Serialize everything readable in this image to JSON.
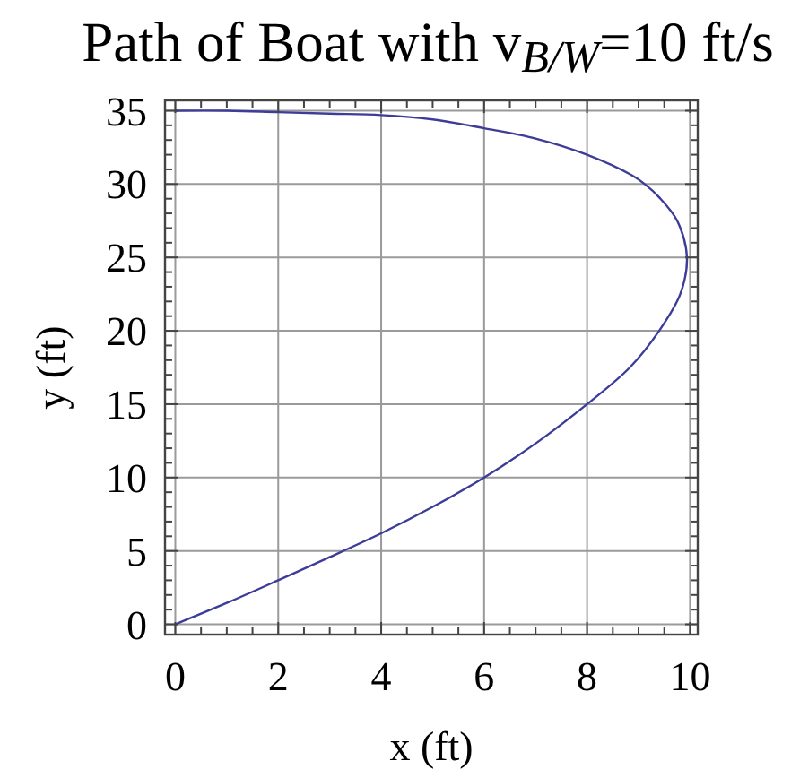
{
  "chart_data": {
    "type": "line",
    "title": "Path of Boat with v$_{B/W}$=10 ft/s",
    "xlabel": "x (ft)",
    "ylabel": "y (ft)",
    "xlim": [
      -0.2,
      10.15
    ],
    "ylim": [
      -0.7,
      35.7
    ],
    "xticks": [
      0,
      {
        "value": 0.5,
        "label": null
      },
      {
        "value": 1,
        "label": null
      },
      {
        "value": 1.5,
        "label": null
      },
      2,
      {
        "value": 2.5,
        "label": null
      },
      {
        "value": 3,
        "label": null
      },
      {
        "value": 3.5,
        "label": null
      },
      4,
      {
        "value": 4.5,
        "label": null
      },
      {
        "value": 5,
        "label": null
      },
      {
        "value": 5.5,
        "label": null
      },
      6,
      {
        "value": 6.5,
        "label": null
      },
      {
        "value": 7,
        "label": null
      },
      {
        "value": 7.5,
        "label": null
      },
      8,
      {
        "value": 8.5,
        "label": null
      },
      {
        "value": 9,
        "label": null
      },
      {
        "value": 9.5,
        "label": null
      },
      10
    ],
    "yticks": [
      0,
      {
        "value": 1,
        "label": null
      },
      {
        "value": 2,
        "label": null
      },
      {
        "value": 3,
        "label": null
      },
      {
        "value": 4,
        "label": null
      },
      5,
      {
        "value": 6,
        "label": null
      },
      {
        "value": 7,
        "label": null
      },
      {
        "value": 8,
        "label": null
      },
      {
        "value": 9,
        "label": null
      },
      10,
      {
        "value": 11,
        "label": null
      },
      {
        "value": 12,
        "label": null
      },
      {
        "value": 13,
        "label": null
      },
      {
        "value": 14,
        "label": null
      },
      15,
      {
        "value": 16,
        "label": null
      },
      {
        "value": 17,
        "label": null
      },
      {
        "value": 18,
        "label": null
      },
      {
        "value": 19,
        "label": null
      },
      20,
      {
        "value": 21,
        "label": null
      },
      {
        "value": 22,
        "label": null
      },
      {
        "value": 23,
        "label": null
      },
      {
        "value": 24,
        "label": null
      },
      25,
      {
        "value": 26,
        "label": null
      },
      {
        "value": 27,
        "label": null
      },
      {
        "value": 28,
        "label": null
      },
      {
        "value": 29,
        "label": null
      },
      30,
      {
        "value": 31,
        "label": null
      },
      {
        "value": 32,
        "label": null
      },
      {
        "value": 33,
        "label": null
      },
      {
        "value": 34,
        "label": null
      },
      35
    ],
    "grid": true,
    "series": [
      {
        "color": "#3d3d99",
        "x": [
          0,
          1.03,
          2.0,
          2.95,
          4.0,
          5.0,
          6.0,
          7.07,
          8.0,
          8.83,
          9.4,
          9.81,
          9.94,
          9.75,
          9.4,
          9.12,
          8.87,
          8.0,
          7.0,
          6.0,
          5.0,
          4.0,
          3.0,
          2.0,
          1.0,
          0
        ],
        "values": [
          0,
          1.5,
          3.0,
          4.5,
          6.2,
          8.0,
          10.0,
          12.5,
          15.0,
          17.5,
          20.0,
          22.5,
          25.0,
          27.5,
          29.1,
          30.0,
          30.6,
          32.0,
          33.1,
          33.8,
          34.4,
          34.7,
          34.8,
          34.9,
          35.0,
          35
        ]
      }
    ]
  }
}
